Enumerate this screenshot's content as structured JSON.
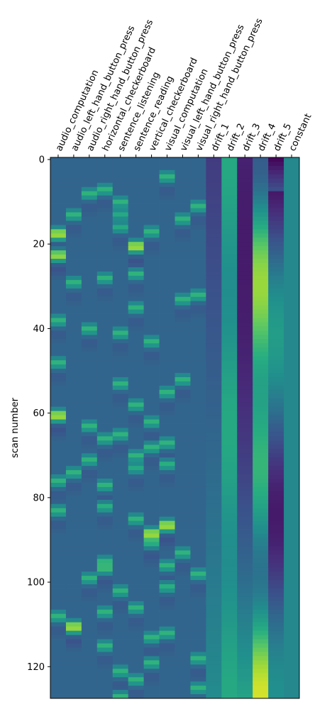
{
  "chart_data": {
    "type": "heatmap",
    "title": "",
    "xlabel": "",
    "ylabel": "scan number",
    "n_scans": 128,
    "yticks": [
      0,
      20,
      40,
      60,
      80,
      100,
      120
    ],
    "colormap": "viridis",
    "regressors": [
      "audio_computation",
      "audio_left_hand_button_press",
      "audio_right_hand_button_press",
      "horizontal_checkerboard",
      "sentence_listening",
      "sentence_reading",
      "vertical_checkerboard",
      "visual_computation",
      "visual_left_hand_button_press",
      "visual_right_hand_button_press",
      "drift_1",
      "drift_2",
      "drift_3",
      "drift_4",
      "drift_5",
      "constant"
    ],
    "events": [
      [
        16,
        17,
        21,
        22,
        37,
        47,
        59,
        60,
        75,
        82,
        107
      ],
      [
        12,
        28,
        73,
        109,
        110
      ],
      [
        7,
        39,
        62,
        70,
        98
      ],
      [
        6,
        27,
        65,
        76,
        81,
        94,
        96,
        106,
        114
      ],
      [
        9,
        12,
        15,
        40,
        52,
        64,
        101,
        120,
        126
      ],
      [
        19,
        20,
        26,
        34,
        57,
        69,
        72,
        84,
        105,
        122
      ],
      [
        16,
        42,
        61,
        67,
        87,
        88,
        90,
        112,
        118
      ],
      [
        3,
        54,
        66,
        71,
        85,
        86,
        95,
        100,
        111
      ],
      [
        13,
        32,
        51,
        92
      ],
      [
        10,
        31,
        97,
        117,
        124
      ]
    ],
    "drifts": [
      {
        "name": "drift_1",
        "start": 0.18,
        "end": 0.48
      },
      {
        "name": "drift_2",
        "start": 0.55,
        "end": 0.55,
        "amp": 0.06
      },
      {
        "name": "drift_3",
        "start": 0.1,
        "end": 0.58,
        "shape": "arch"
      },
      {
        "name": "drift_4",
        "start": 0.62,
        "end": 0.62,
        "amp": 0.32
      },
      {
        "name": "drift_5",
        "start": 0.02,
        "end": 0.62,
        "shape": "wave"
      }
    ],
    "constant_value": 0.47
  }
}
